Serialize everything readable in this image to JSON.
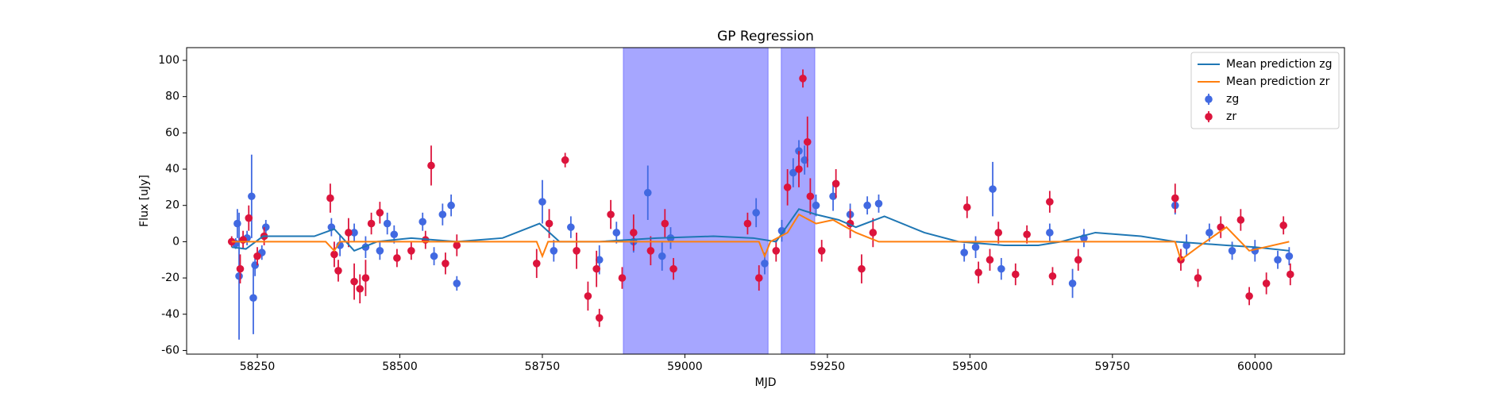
{
  "chart_data": {
    "type": "errorbar-scatter",
    "title": "GP Regression",
    "x_label": "MJD",
    "y_label": "Flux [uJy]",
    "xlim": [
      58126,
      60157
    ],
    "ylim": [
      -62,
      107
    ],
    "xticks": [
      58250,
      58500,
      58750,
      59000,
      59250,
      59500,
      59750,
      60000
    ],
    "yticks": [
      -60,
      -40,
      -20,
      0,
      20,
      40,
      60,
      80,
      100
    ],
    "legend": "upper right",
    "shaded_regions": [
      [
        58892,
        59146
      ],
      [
        59169,
        59228
      ]
    ],
    "shade_color": "#0000ff",
    "series": [
      {
        "name": "Mean prediction zg",
        "type": "line",
        "color": "#1f77b4",
        "x": [
          58205,
          58230,
          58260,
          58300,
          58350,
          58385,
          58420,
          58460,
          58520,
          58600,
          58680,
          58745,
          58780,
          58850,
          58950,
          59050,
          59120,
          59160,
          59200,
          59230,
          59270,
          59300,
          59350,
          59420,
          59480,
          59560,
          59620,
          59660,
          59720,
          59800,
          59860,
          59950,
          60000,
          60060
        ],
        "values": [
          -3,
          -4,
          3,
          3,
          3,
          7,
          -5,
          0,
          2,
          0,
          2,
          10,
          0,
          0,
          2,
          3,
          2,
          0,
          18,
          15,
          12,
          8,
          14,
          5,
          0,
          -2,
          -2,
          0,
          5,
          3,
          0,
          -2,
          -3,
          -5
        ]
      },
      {
        "name": "Mean prediction zr",
        "type": "line",
        "color": "#ff7f0e",
        "x": [
          58205,
          58370,
          58385,
          58395,
          58420,
          58600,
          58740,
          58750,
          58760,
          59130,
          59140,
          59150,
          59180,
          59200,
          59230,
          59260,
          59300,
          59340,
          59480,
          59860,
          59870,
          59900,
          59950,
          59990,
          60060
        ],
        "values": [
          0,
          0,
          -5,
          0,
          0,
          0,
          0,
          -8,
          0,
          0,
          -8,
          0,
          5,
          15,
          10,
          12,
          5,
          0,
          0,
          0,
          -10,
          -3,
          8,
          -5,
          0
        ]
      },
      {
        "name": "zg",
        "type": "errorbar",
        "color": "#4169e1",
        "x": [
          58212,
          58215,
          58218,
          58232,
          58240,
          58243,
          58246,
          58258,
          58265,
          58380,
          58395,
          58420,
          58440,
          58465,
          58478,
          58490,
          58540,
          58560,
          58575,
          58590,
          58600,
          58750,
          58770,
          58800,
          58850,
          58880,
          58910,
          58935,
          58960,
          58975,
          59125,
          59140,
          59170,
          59190,
          59200,
          59210,
          59230,
          59260,
          59290,
          59320,
          59340,
          59490,
          59510,
          59540,
          59555,
          59640,
          59680,
          59700,
          59860,
          59880,
          59920,
          59960,
          60000,
          60040,
          60060
        ],
        "values": [
          -1,
          10,
          -19,
          2,
          25,
          -31,
          -13,
          -6,
          8,
          8,
          -2,
          5,
          -3,
          -5,
          10,
          4,
          11,
          -8,
          15,
          20,
          -23,
          22,
          -5,
          8,
          -10,
          5,
          0,
          27,
          -8,
          2,
          16,
          -12,
          6,
          38,
          50,
          45,
          20,
          25,
          15,
          20,
          21,
          -6,
          -3,
          29,
          -15,
          5,
          -23,
          2,
          20,
          -2,
          5,
          -5,
          -5,
          -10,
          -8
        ],
        "errors": [
          3,
          8,
          35,
          4,
          23,
          20,
          6,
          4,
          4,
          5,
          6,
          5,
          6,
          5,
          6,
          5,
          5,
          5,
          6,
          6,
          4,
          12,
          6,
          6,
          8,
          6,
          6,
          15,
          8,
          6,
          8,
          6,
          6,
          8,
          6,
          8,
          6,
          8,
          6,
          5,
          5,
          5,
          6,
          15,
          6,
          5,
          8,
          5,
          5,
          6,
          5,
          5,
          6,
          5,
          5
        ]
      },
      {
        "name": "zr",
        "type": "errorbar",
        "color": "#dc143c",
        "x": [
          58205,
          58220,
          58225,
          58235,
          58250,
          58262,
          58378,
          58385,
          58392,
          58410,
          58420,
          58430,
          58440,
          58450,
          58465,
          58495,
          58520,
          58545,
          58555,
          58580,
          58600,
          58740,
          58762,
          58790,
          58810,
          58830,
          58845,
          58850,
          58870,
          58890,
          58910,
          58940,
          58965,
          58980,
          59110,
          59130,
          59160,
          59180,
          59200,
          59207,
          59215,
          59220,
          59240,
          59265,
          59290,
          59310,
          59330,
          59495,
          59515,
          59535,
          59550,
          59580,
          59600,
          59640,
          59645,
          59690,
          59860,
          59870,
          59900,
          59940,
          59975,
          59990,
          60020,
          60050,
          60062
        ],
        "values": [
          0,
          -15,
          1,
          13,
          -8,
          3,
          24,
          -7,
          -16,
          5,
          -22,
          -26,
          -20,
          10,
          16,
          -9,
          -5,
          1,
          42,
          -12,
          -2,
          -12,
          10,
          45,
          -5,
          -30,
          -15,
          -42,
          15,
          -20,
          5,
          -5,
          10,
          -15,
          10,
          -20,
          -5,
          30,
          40,
          90,
          55,
          25,
          -5,
          32,
          10,
          -15,
          5,
          19,
          -17,
          -10,
          5,
          -18,
          4,
          22,
          -19,
          -10,
          24,
          -10,
          -20,
          8,
          12,
          -30,
          -23,
          9,
          -18
        ],
        "errors": [
          3,
          8,
          5,
          7,
          5,
          5,
          8,
          7,
          6,
          8,
          10,
          8,
          10,
          6,
          6,
          5,
          5,
          5,
          11,
          6,
          6,
          8,
          8,
          4,
          10,
          8,
          10,
          5,
          8,
          6,
          10,
          8,
          8,
          6,
          6,
          7,
          6,
          10,
          10,
          5,
          14,
          10,
          6,
          8,
          8,
          8,
          8,
          6,
          6,
          6,
          6,
          6,
          5,
          6,
          5,
          6,
          8,
          6,
          5,
          6,
          6,
          5,
          6,
          5,
          6
        ]
      }
    ]
  }
}
